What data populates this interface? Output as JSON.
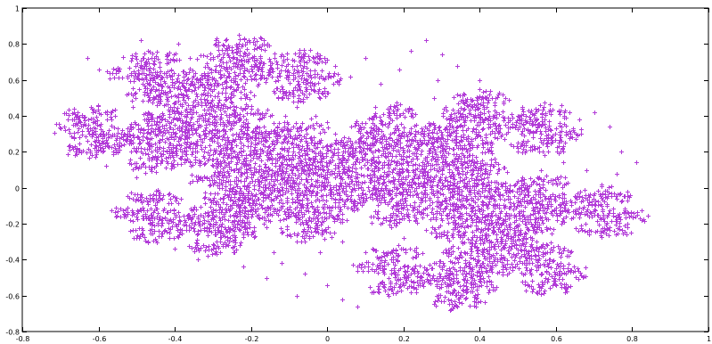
{
  "chart_data": {
    "type": "scatter",
    "title": "",
    "xlabel": "",
    "ylabel": "",
    "xlim": [
      -0.8,
      1.0
    ],
    "ylim": [
      -0.8,
      1.0
    ],
    "x_ticks": [
      "-0.8",
      "-0.6",
      "-0.4",
      "-0.2",
      "0",
      "0.2",
      "0.4",
      "0.6",
      "0.8",
      "1"
    ],
    "y_ticks": [
      "-0.8",
      "-0.6",
      "-0.4",
      "-0.2",
      "0",
      "0.2",
      "0.4",
      "0.6",
      "0.8",
      "1"
    ],
    "grid": false,
    "legend": "none",
    "marker": "plus",
    "series": [
      {
        "color": "#b23bd8",
        "generator": "twindragon-ifs",
        "points": [
          [
            -0.7,
            0.33
          ],
          [
            -0.66,
            0.36
          ],
          [
            -0.62,
            0.24
          ],
          [
            -0.58,
            0.3
          ],
          [
            -0.55,
            0.2
          ],
          [
            -0.63,
            0.72
          ],
          [
            -0.6,
            0.66
          ],
          [
            -0.57,
            0.61
          ],
          [
            -0.52,
            0.67
          ],
          [
            -0.49,
            0.82
          ],
          [
            -0.47,
            0.76
          ],
          [
            -0.44,
            0.7
          ],
          [
            -0.41,
            0.66
          ],
          [
            -0.39,
            0.8
          ],
          [
            -0.36,
            0.72
          ],
          [
            -0.34,
            0.6
          ],
          [
            -0.38,
            0.52
          ],
          [
            -0.31,
            0.45
          ],
          [
            -0.29,
            0.4
          ],
          [
            -0.51,
            0.45
          ],
          [
            -0.46,
            0.35
          ],
          [
            -0.49,
            0.2
          ],
          [
            -0.45,
            0.12
          ],
          [
            -0.5,
            0.06
          ],
          [
            -0.58,
            0.12
          ],
          [
            -0.41,
            0.28
          ],
          [
            -0.36,
            0.22
          ],
          [
            -0.32,
            0.3
          ],
          [
            -0.27,
            0.18
          ],
          [
            -0.22,
            0.3
          ],
          [
            -0.18,
            0.25
          ],
          [
            -0.14,
            0.36
          ],
          [
            -0.11,
            0.4
          ],
          [
            -0.08,
            0.45
          ],
          [
            -0.03,
            0.4
          ],
          [
            0.02,
            0.3
          ],
          [
            0.06,
            0.26
          ],
          [
            0.12,
            0.24
          ],
          [
            0.18,
            0.32
          ],
          [
            0.22,
            0.4
          ],
          [
            0.28,
            0.5
          ],
          [
            0.31,
            0.45
          ],
          [
            0.35,
            0.35
          ],
          [
            0.3,
            0.22
          ],
          [
            0.25,
            0.14
          ],
          [
            0.02,
            0.68
          ],
          [
            0.06,
            0.62
          ],
          [
            0.1,
            0.72
          ],
          [
            0.14,
            0.58
          ],
          [
            0.19,
            0.66
          ],
          [
            0.22,
            0.76
          ],
          [
            0.26,
            0.82
          ],
          [
            0.3,
            0.74
          ],
          [
            0.34,
            0.68
          ],
          [
            0.29,
            0.6
          ],
          [
            0.4,
            0.6
          ],
          [
            0.44,
            0.46
          ],
          [
            0.5,
            0.4
          ],
          [
            0.55,
            0.34
          ],
          [
            0.52,
            0.25
          ],
          [
            0.58,
            0.2
          ],
          [
            0.63,
            0.3
          ],
          [
            0.66,
            0.38
          ],
          [
            0.7,
            0.42
          ],
          [
            0.74,
            0.34
          ],
          [
            0.77,
            0.2
          ],
          [
            0.81,
            0.14
          ],
          [
            0.76,
            0.08
          ],
          [
            0.72,
            0.02
          ],
          [
            0.68,
            0.1
          ],
          [
            0.62,
            0.14
          ],
          [
            0.56,
            0.1
          ],
          [
            0.5,
            0.04
          ],
          [
            0.45,
            -0.04
          ],
          [
            0.4,
            -0.12
          ],
          [
            0.46,
            -0.18
          ],
          [
            0.52,
            -0.28
          ],
          [
            0.48,
            -0.34
          ],
          [
            0.41,
            -0.3
          ],
          [
            0.36,
            -0.22
          ],
          [
            0.3,
            -0.18
          ],
          [
            0.24,
            -0.1
          ],
          [
            0.18,
            -0.04
          ],
          [
            0.12,
            0.0
          ],
          [
            0.06,
            0.06
          ],
          [
            0.0,
            0.12
          ],
          [
            -0.06,
            0.16
          ],
          [
            -0.12,
            0.1
          ],
          [
            -0.18,
            0.04
          ],
          [
            -0.24,
            -0.02
          ],
          [
            -0.3,
            -0.08
          ],
          [
            -0.28,
            -0.18
          ],
          [
            -0.22,
            -0.26
          ],
          [
            -0.16,
            -0.22
          ],
          [
            -0.1,
            -0.16
          ],
          [
            -0.04,
            -0.1
          ],
          [
            0.02,
            -0.06
          ],
          [
            0.08,
            -0.12
          ],
          [
            0.14,
            -0.2
          ],
          [
            0.2,
            -0.28
          ],
          [
            -0.4,
            -0.34
          ],
          [
            -0.34,
            -0.4
          ],
          [
            -0.28,
            -0.36
          ],
          [
            -0.22,
            -0.44
          ],
          [
            -0.16,
            -0.5
          ],
          [
            -0.12,
            -0.42
          ],
          [
            -0.06,
            -0.48
          ],
          [
            0.0,
            -0.54
          ],
          [
            0.04,
            -0.62
          ],
          [
            0.08,
            -0.66
          ],
          [
            0.12,
            -0.58
          ],
          [
            0.16,
            -0.5
          ],
          [
            0.22,
            -0.48
          ],
          [
            0.18,
            -0.4
          ],
          [
            0.1,
            -0.36
          ],
          [
            0.04,
            -0.3
          ],
          [
            -0.02,
            -0.36
          ],
          [
            -0.08,
            -0.3
          ],
          [
            -0.14,
            -0.36
          ],
          [
            -0.08,
            -0.6
          ],
          [
            -0.2,
            0.44
          ],
          [
            -0.25,
            0.36
          ],
          [
            -0.02,
            0.2
          ],
          [
            0.08,
            0.16
          ],
          [
            0.16,
            0.08
          ],
          [
            0.28,
            0.06
          ],
          [
            0.34,
            0.0
          ],
          [
            0.38,
            0.08
          ],
          [
            0.44,
            0.16
          ],
          [
            0.48,
            0.24
          ]
        ]
      }
    ]
  },
  "colors": {
    "background": "#ffffff",
    "axis": "#000000",
    "series": "#b23bd8"
  }
}
